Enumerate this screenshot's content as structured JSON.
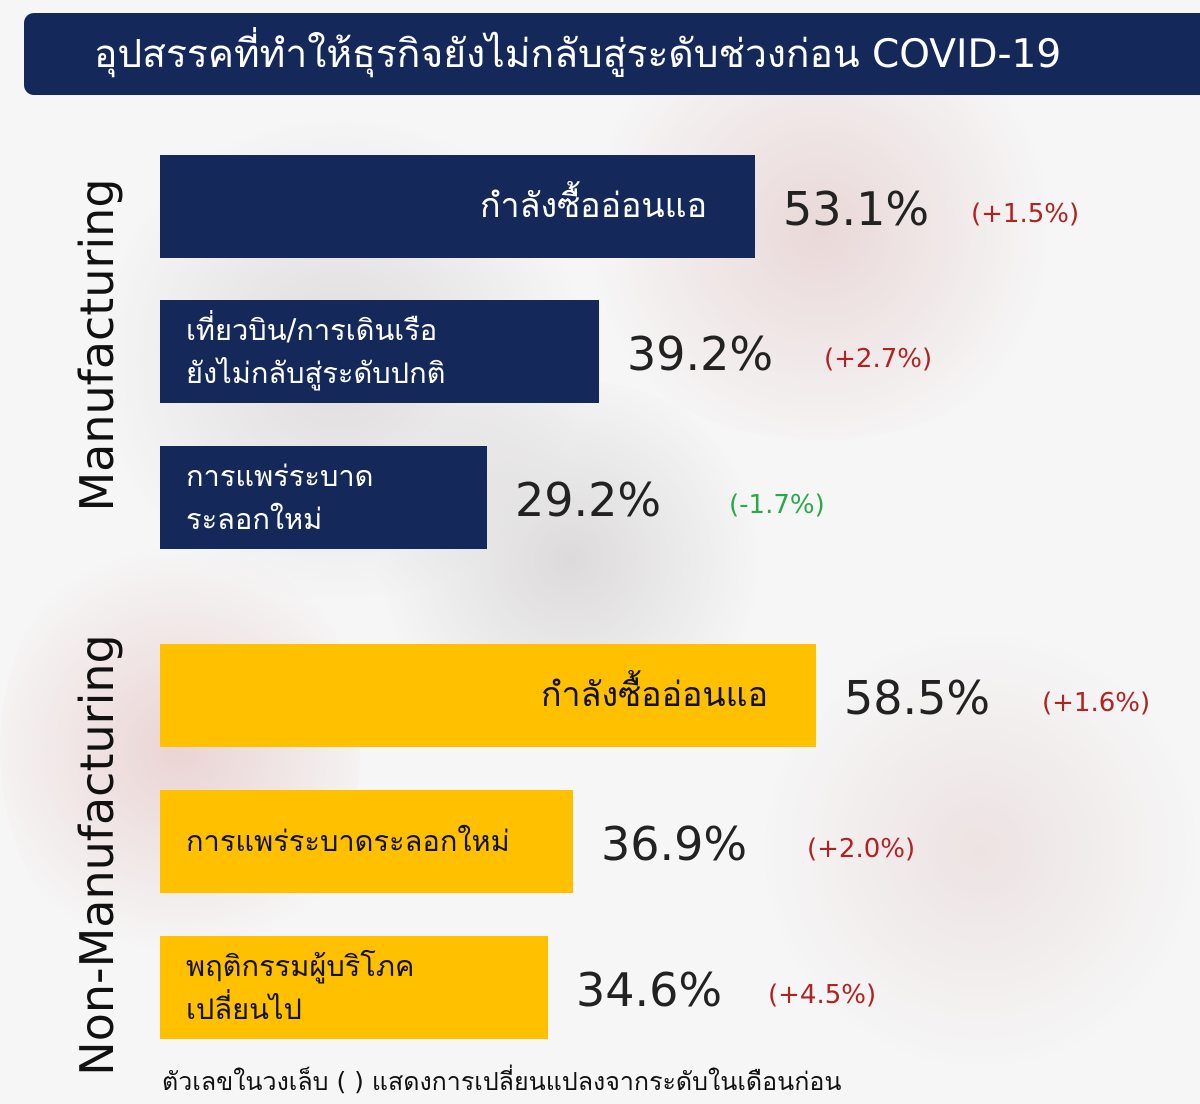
{
  "title": "อุปสรรคที่ทำให้ธุรกิจยังไม่กลับสู่ระดับช่วงก่อน  COVID-19",
  "footnote": "ตัวเลขในวงเล็บ ( ) แสดงการเปลี่ยนแปลงจากระดับในเดือนก่อน",
  "colors": {
    "title_bg": "#14285a",
    "manufacturing_bar": "#14285a",
    "non_manufacturing_bar": "#ffc000",
    "increase": "#b22222",
    "decrease": "#2aa84a"
  },
  "chart_data": {
    "type": "bar",
    "orientation": "horizontal",
    "title": "อุปสรรคที่ทำให้ธุรกิจยังไม่กลับสู่ระดับช่วงก่อน  COVID-19",
    "unit": "%",
    "groups": [
      {
        "name": "Manufacturing",
        "bar_color": "#14285a",
        "label_color": "#ffffff",
        "items": [
          {
            "label": "กำลังซื้ออ่อนแอ",
            "value": 53.1,
            "value_label": "53.1%",
            "change": 1.5,
            "change_label": "(+1.5%)"
          },
          {
            "label": "เที่ยวบิน/การเดินเรือ\nยังไม่กลับสู่ระดับปกติ",
            "value": 39.2,
            "value_label": "39.2%",
            "change": 2.7,
            "change_label": "(+2.7%)"
          },
          {
            "label": "การแพร่ระบาด\nระลอกใหม่",
            "value": 29.2,
            "value_label": "29.2%",
            "change": -1.7,
            "change_label": "(-1.7%)"
          }
        ]
      },
      {
        "name": "Non-Manufacturing",
        "bar_color": "#ffc000",
        "label_color": "#111111",
        "items": [
          {
            "label": "กำลังซื้ออ่อนแอ",
            "value": 58.5,
            "value_label": "58.5%",
            "change": 1.6,
            "change_label": "(+1.6%)"
          },
          {
            "label": "การแพร่ระบาดระลอกใหม่",
            "value": 36.9,
            "value_label": "36.9%",
            "change": 2.0,
            "change_label": "(+2.0%)"
          },
          {
            "label": "พฤติกรรมผู้บริโภค\nเปลี่ยนไป",
            "value": 34.6,
            "value_label": "34.6%",
            "change": 4.5,
            "change_label": "(+4.5%)"
          }
        ]
      }
    ]
  }
}
